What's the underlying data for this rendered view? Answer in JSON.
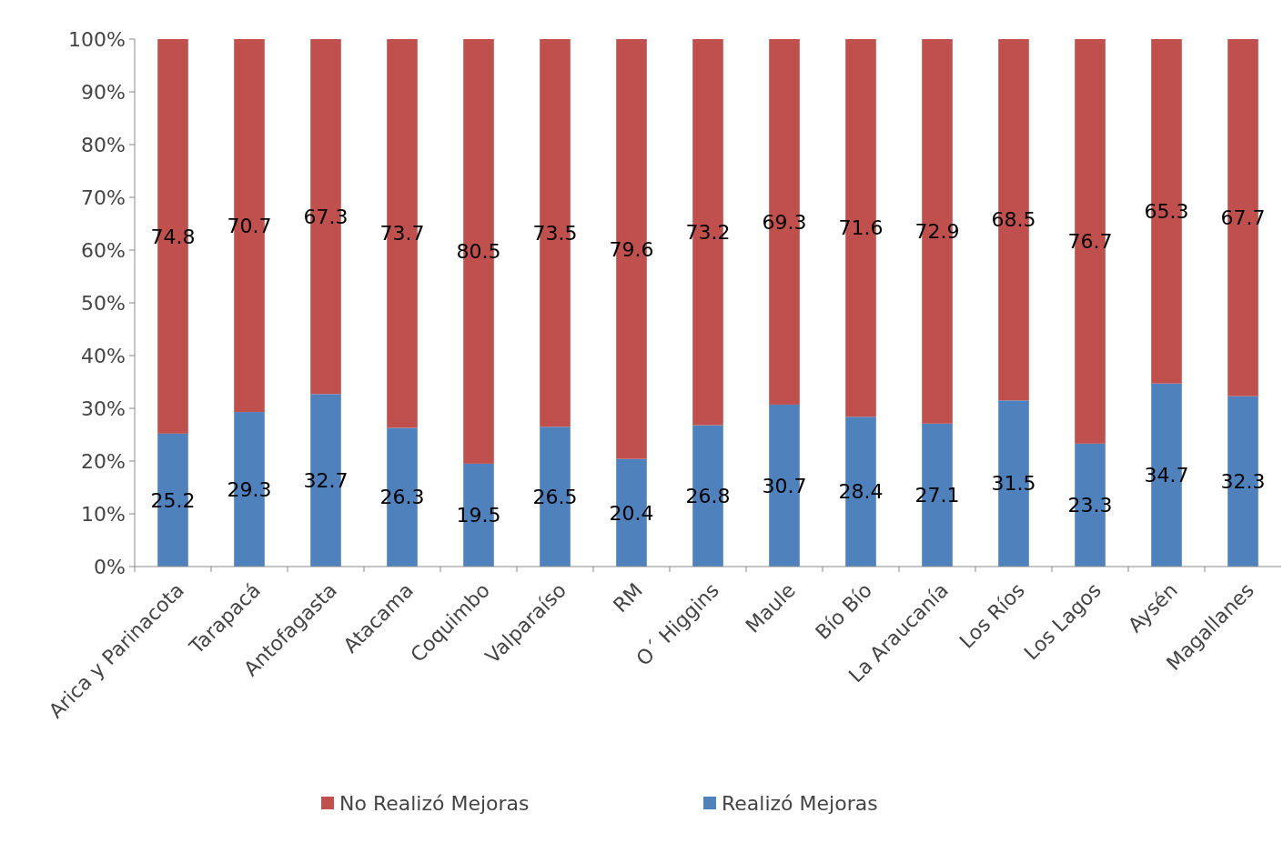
{
  "chart_data": {
    "type": "bar",
    "stacked": true,
    "categories": [
      "Arica y Parinacota",
      "Tarapacá",
      "Antofagasta",
      "Atacama",
      "Coquimbo",
      "Valparaíso",
      "RM",
      "O´ Higgins",
      "Maule",
      "Bío Bío",
      "La Araucanía",
      "Los Ríos",
      "Los Lagos",
      "Aysén",
      "Magallanes"
    ],
    "series": [
      {
        "name": "Realizó Mejoras",
        "color": "#4f81bd",
        "values": [
          25.2,
          29.3,
          32.7,
          26.3,
          19.5,
          26.5,
          20.4,
          26.8,
          30.7,
          28.4,
          27.1,
          31.5,
          23.3,
          34.7,
          32.3
        ]
      },
      {
        "name": "No Realizó Mejoras",
        "color": "#c0504d",
        "values": [
          74.8,
          70.7,
          67.3,
          73.7,
          80.5,
          73.5,
          79.6,
          73.2,
          69.3,
          71.6,
          72.9,
          68.5,
          76.7,
          65.3,
          67.7
        ]
      }
    ],
    "ylim": [
      0,
      100
    ],
    "yticks": [
      {
        "value": 0,
        "label": "0%"
      },
      {
        "value": 10,
        "label": "10%"
      },
      {
        "value": 20,
        "label": "20%"
      },
      {
        "value": 30,
        "label": "30%"
      },
      {
        "value": 40,
        "label": "40%"
      },
      {
        "value": 50,
        "label": "50%"
      },
      {
        "value": 60,
        "label": "60%"
      },
      {
        "value": 70,
        "label": "70%"
      },
      {
        "value": 80,
        "label": "80%"
      },
      {
        "value": 90,
        "label": "90%"
      },
      {
        "value": 100,
        "label": "100%"
      }
    ],
    "data_labels": true,
    "legend": "bottom"
  }
}
